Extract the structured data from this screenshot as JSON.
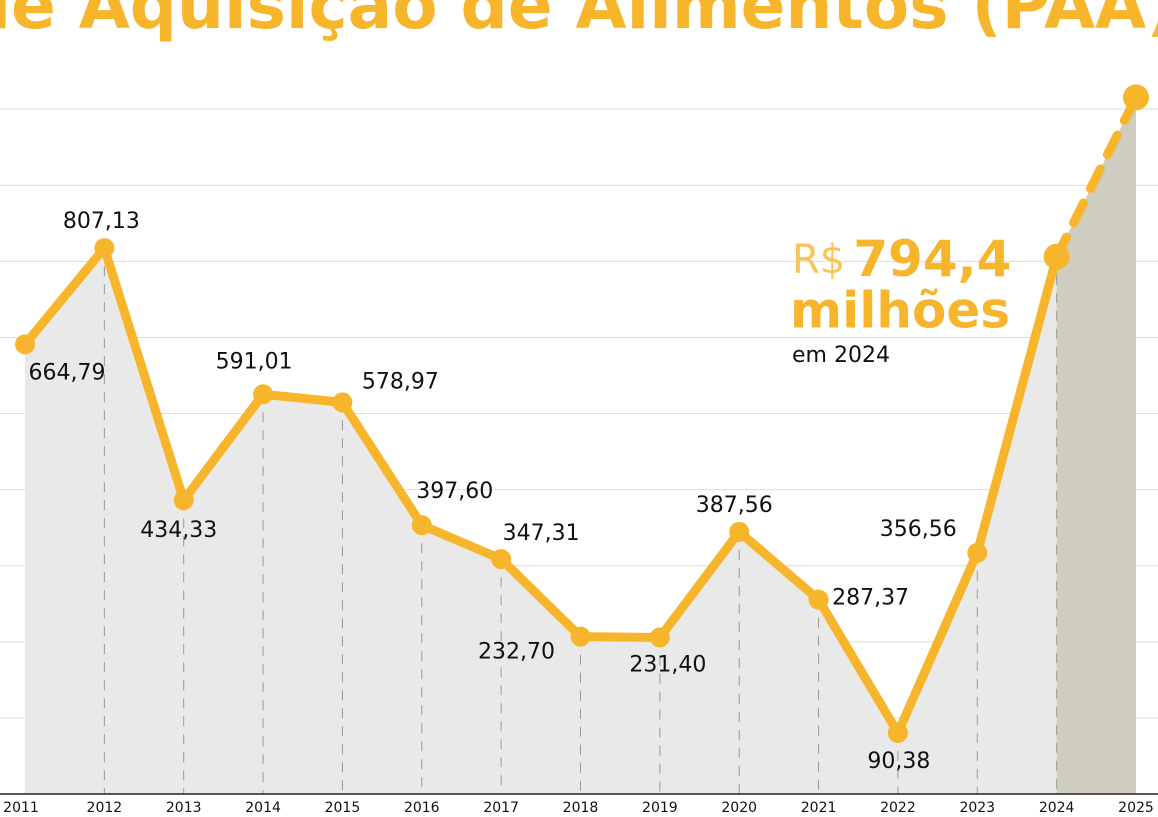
{
  "chart_data": {
    "type": "line",
    "title": "de Aquisição de Alimentos (PAA)",
    "categories": [
      "2011",
      "2012",
      "2013",
      "2014",
      "2015",
      "2016",
      "2017",
      "2018",
      "2019",
      "2020",
      "2021",
      "2022",
      "2023",
      "2024",
      "2025"
    ],
    "values": [
      664.79,
      807.13,
      434.33,
      591.01,
      578.97,
      397.6,
      347.31,
      232.7,
      231.4,
      387.56,
      287.37,
      90.38,
      356.56,
      794.4,
      1030
    ],
    "value_labels": [
      "664,79",
      "807,13",
      "434,33",
      "591,01",
      "578,97",
      "397,60",
      "347,31",
      "232,70",
      "231,40",
      "387,56",
      "287,37",
      "90,38",
      "356,56",
      "794,4",
      null
    ],
    "annotation": {
      "prefix": "R$",
      "value": "794,4",
      "unit": "milhões",
      "note": "em 2024"
    },
    "color": "#f7b52b",
    "ylim": [
      0,
      1100
    ],
    "yticks": [
      112.5,
      225,
      337.5,
      450,
      562.5,
      675,
      787.5,
      900,
      1012.5
    ],
    "grid": true
  }
}
